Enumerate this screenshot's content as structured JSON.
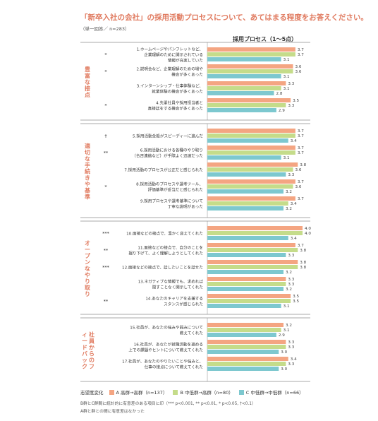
{
  "title": "「新卒入社の会社」の採用活動プロセスについて、あてはまる程度をお答えください。",
  "subtitle": "（単一回答／ n=283）",
  "axis_title": "採用プロセス（1〜5点）",
  "legend": {
    "label": "志望度変化",
    "items": [
      {
        "name": "A 高群→高群（n=137）",
        "color": "#f4a582"
      },
      {
        "name": "B 中低群→高群（n=80）",
        "color": "#c5dc8a"
      },
      {
        "name": "C 中低群→中低群（n=66）",
        "color": "#7dc8cf"
      }
    ]
  },
  "notes": [
    "B群とC群間に統計的に有意差のある項目に印（*** p<0.001, ** p<0.01, * p<0.05, †<0.1）",
    "A群と群との間に有意差はなかった"
  ],
  "chart_data": {
    "type": "bar",
    "orientation": "horizontal",
    "xlim": [
      0,
      5
    ],
    "series": [
      {
        "name": "A 高群→高群（n=137）",
        "color": "#f4a582"
      },
      {
        "name": "B 中低群→高群（n=80）",
        "color": "#c5dc8a"
      },
      {
        "name": "C 中低群→中低群（n=66）",
        "color": "#7dc8cf"
      }
    ],
    "groups": [
      {
        "label": "豊富な接点",
        "items": [
          {
            "label": [
              "1.ホームページやパンフレットなど、",
              "企業理解のために開示されている",
              "情報が充実していた"
            ],
            "sig": "*",
            "values": [
              3.7,
              3.7,
              3.1
            ]
          },
          {
            "label": [
              "2.説明会など、企業理解のための場や",
              "機会が多くあった"
            ],
            "sig": "*",
            "values": [
              3.6,
              3.6,
              3.1
            ]
          },
          {
            "label": [
              "3.インターンシップ・仕事体験など、",
              "就業体験の機会が多くあった"
            ],
            "sig": "",
            "values": [
              3.3,
              3.1,
              2.8
            ]
          },
          {
            "label": [
              "4.先輩社員や採用担当者と",
              "直接話をする機会が多くあった"
            ],
            "sig": "*",
            "values": [
              3.5,
              3.3,
              2.9
            ]
          }
        ]
      },
      {
        "label": "適切な手続きや基準",
        "items": [
          {
            "label": [
              "5.採用活動全般がスピーディーに進んだ"
            ],
            "sig": "†",
            "values": [
              3.7,
              3.7,
              3.4
            ]
          },
          {
            "label": [
              "6.採用活動における各種のやり取り",
              "（合否連絡など）が手際よく迅速だった"
            ],
            "sig": "**",
            "values": [
              3.7,
              3.7,
              3.1
            ]
          },
          {
            "label": [
              "7.採用活動のプロセスが公正だと感じられた"
            ],
            "sig": "",
            "values": [
              3.8,
              3.6,
              3.3
            ]
          },
          {
            "label": [
              "8.採用活動のプロセスや選考ツール、",
              "評価基準が妥当だと感じられた"
            ],
            "sig": "*",
            "values": [
              3.7,
              3.6,
              3.2
            ]
          },
          {
            "label": [
              "9.採用プロセスや選考基準について",
              "丁寧な説明があった"
            ],
            "sig": "",
            "values": [
              3.7,
              3.4,
              3.2
            ]
          }
        ]
      },
      {
        "label": "オープンなやり取り",
        "items": [
          {
            "label": [
              "10.面接などの接点で、温かく迎えてくれた"
            ],
            "sig": "***",
            "values": [
              4.0,
              4.0,
              3.4
            ]
          },
          {
            "label": [
              "11.面接などの接点で、自分のことを",
              "掘り下げて、よく理解しようとしてくれた"
            ],
            "sig": "**",
            "values": [
              3.7,
              3.8,
              3.3
            ]
          },
          {
            "label": [
              "12.面接などの接点で、話したいことを話せた"
            ],
            "sig": "***",
            "values": [
              3.8,
              3.8,
              3.2
            ]
          },
          {
            "label": [
              "13.ネガティブな情報でも、求めれば",
              "隠すことなく開示してくれた"
            ],
            "sig": "",
            "values": [
              3.3,
              3.3,
              3.2
            ]
          },
          {
            "label": [
              "14.あなたのキャリアを支援する",
              "スタンスが感じられた"
            ],
            "sig": "**",
            "values": [
              3.5,
              3.5,
              3.1
            ]
          }
        ]
      },
      {
        "label": "社員からのフィードバック",
        "items": [
          {
            "label": [
              "15.社員が、あなたの強みや弱みについて",
              "教えてくれた"
            ],
            "sig": "",
            "values": [
              3.2,
              3.1,
              2.9
            ]
          },
          {
            "label": [
              "16.社員が、あなたが就職活動を進める",
              "上での課題やヒントについて教えてくれた"
            ],
            "sig": "",
            "values": [
              3.3,
              3.3,
              3.0
            ]
          },
          {
            "label": [
              "17.社員が、あなたのやりたいことや強みと、",
              "仕事の接点について教えてくれた"
            ],
            "sig": "",
            "values": [
              3.4,
              3.3,
              3.0
            ]
          }
        ]
      }
    ]
  }
}
